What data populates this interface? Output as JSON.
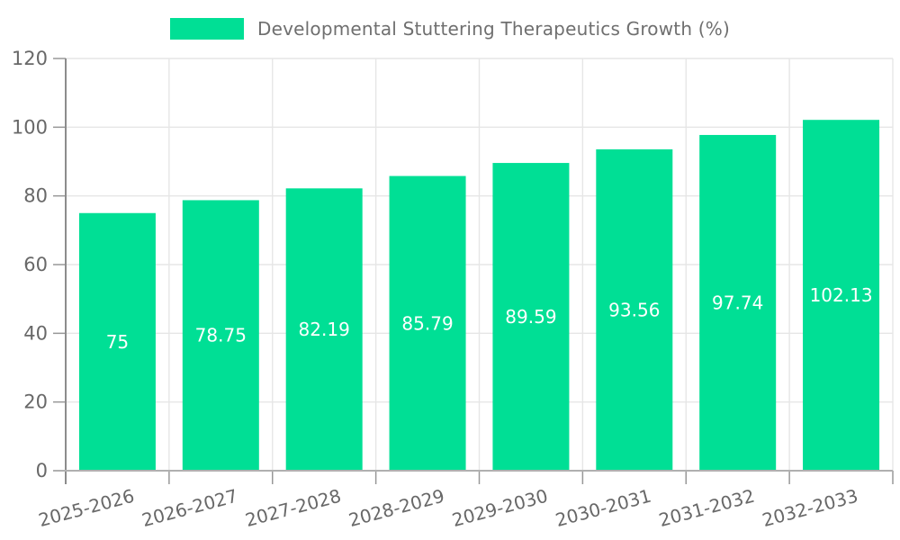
{
  "legend": {
    "label": "Developmental Stuttering Therapeutics Growth (%)",
    "swatch_color": "#00df95"
  },
  "chart_data": {
    "type": "bar",
    "title": "Developmental Stuttering Therapeutics Growth (%)",
    "categories": [
      "2025-2026",
      "2026-2027",
      "2027-2028",
      "2028-2029",
      "2029-2030",
      "2030-2031",
      "2031-2032",
      "2032-2033"
    ],
    "values": [
      75,
      78.75,
      82.19,
      85.79,
      89.59,
      93.56,
      97.74,
      102.13
    ],
    "value_labels": [
      "75",
      "78.75",
      "82.19",
      "85.79",
      "89.59",
      "93.56",
      "97.74",
      "102.13"
    ],
    "xlabel": "",
    "ylabel": "",
    "ylim": [
      0,
      120
    ],
    "yticks": [
      0,
      20,
      40,
      60,
      80,
      100,
      120
    ],
    "grid": true,
    "legend_position": "top",
    "bar_color": "#00df95",
    "value_label_color": "#ffffff",
    "axis_text_color": "#686868",
    "grid_color": "#e6e6e6",
    "axis_line_color": "#989898",
    "x_label_rotation_deg": -15
  }
}
